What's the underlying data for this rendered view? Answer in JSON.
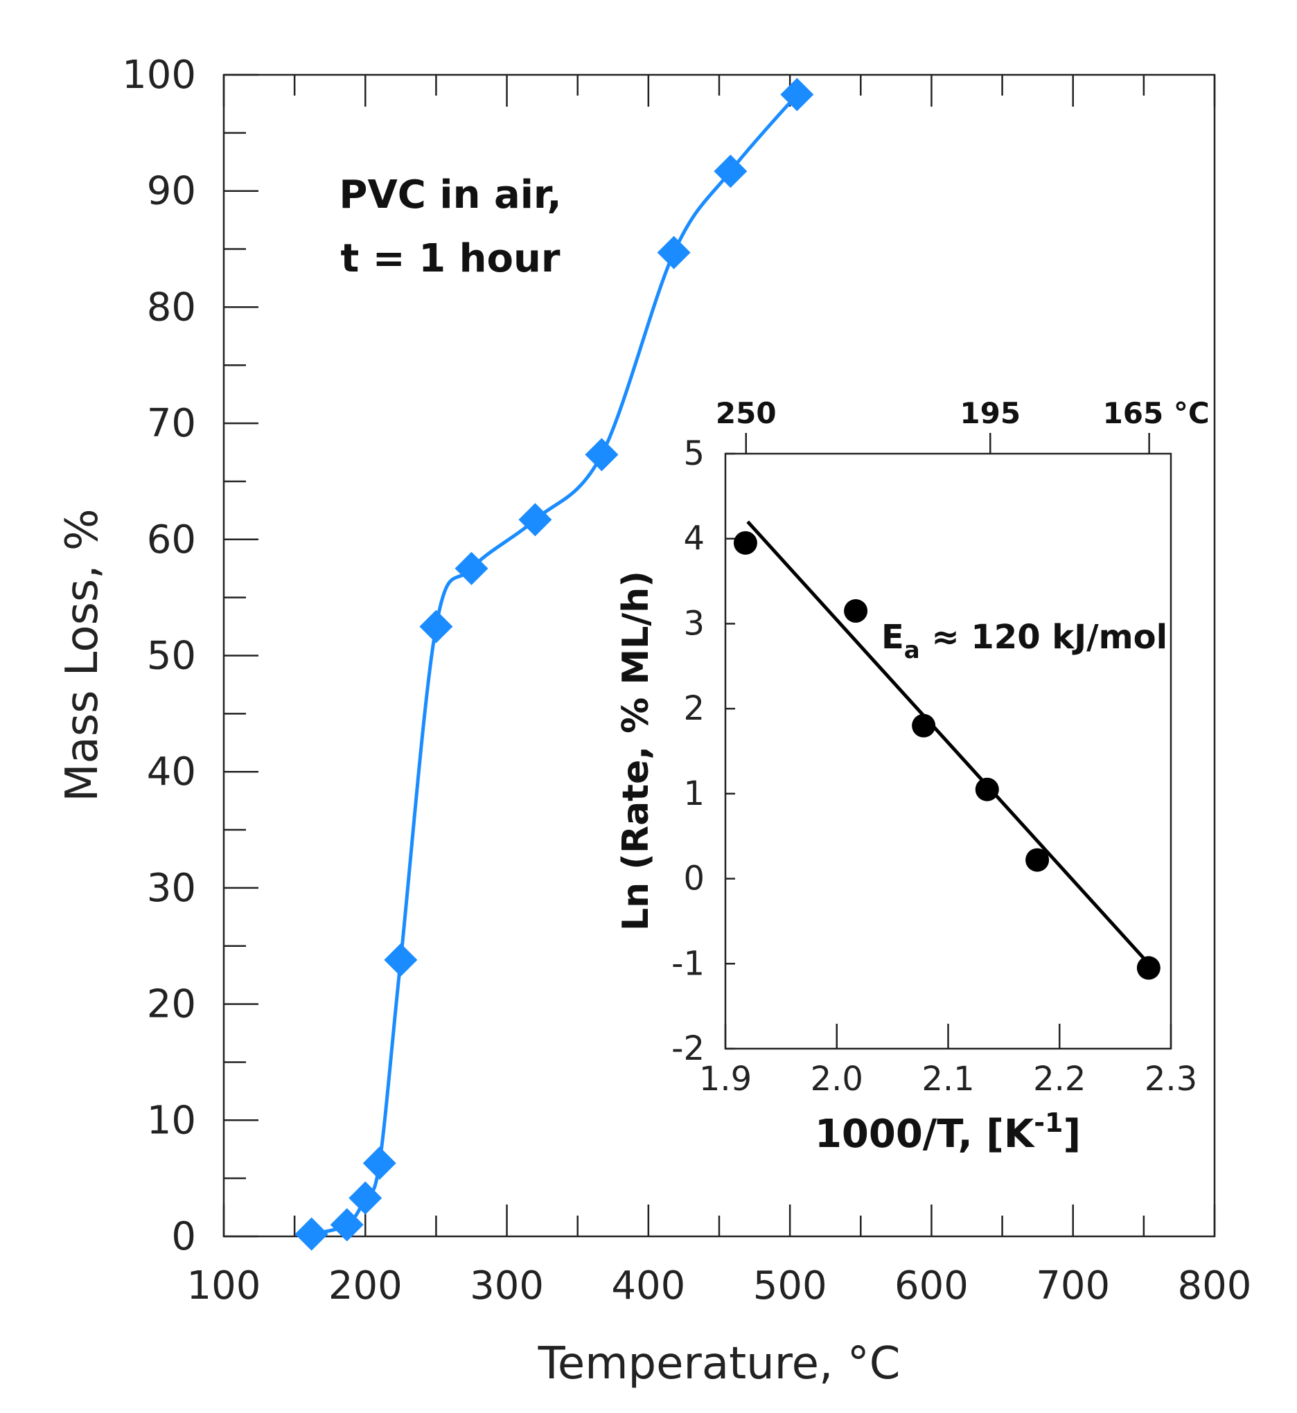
{
  "chart_data": [
    {
      "type": "line",
      "title": "",
      "annotation": {
        "line1": "PVC in air,",
        "line2": "t = 1 hour"
      },
      "xlabel": "Temperature, °C",
      "ylabel": "Mass Loss, %",
      "xlim": [
        100,
        800
      ],
      "ylim": [
        0,
        100
      ],
      "xticks": [
        100,
        200,
        300,
        400,
        500,
        600,
        700,
        800
      ],
      "yticks": [
        0,
        10,
        20,
        30,
        40,
        50,
        60,
        70,
        80,
        90,
        100
      ],
      "xtick_labels": [
        "100",
        "200",
        "300",
        "400",
        "500",
        "600",
        "700",
        "800"
      ],
      "ytick_labels": [
        "0",
        "10",
        "20",
        "30",
        "40",
        "50",
        "60",
        "70",
        "80",
        "90",
        "100"
      ],
      "grid": false,
      "series": [
        {
          "name": "PVC mass loss",
          "color": "#1a8cff",
          "marker": "diamond",
          "x": [
            162,
            187,
            200,
            210,
            225,
            250,
            275,
            320,
            367,
            418,
            458,
            505
          ],
          "y": [
            0.2,
            1.0,
            3.3,
            6.3,
            23.8,
            52.5,
            57.5,
            61.7,
            67.3,
            84.7,
            91.7,
            98.3
          ]
        }
      ]
    },
    {
      "type": "scatter",
      "title": "",
      "annotation": {
        "ea_main": "E",
        "ea_sub": "a",
        "ea_rest": " ≈ 120 kJ/mol"
      },
      "xlabel": "1000/T, [K",
      "xlabel_sup": "-1",
      "xlabel_end": "]",
      "ylabel": "Ln (Rate, % ML/h)",
      "xlim": [
        1.9,
        2.3
      ],
      "ylim": [
        -2,
        5
      ],
      "xticks": [
        1.9,
        2.0,
        2.1,
        2.2,
        2.3
      ],
      "yticks": [
        -2,
        -1,
        0,
        1,
        2,
        3,
        4,
        5
      ],
      "xtick_labels": [
        "1.9",
        "2.0",
        "2.1",
        "2.2",
        "2.3"
      ],
      "ytick_labels": [
        "-2",
        "-1",
        "0",
        "1",
        "2",
        "3",
        "4",
        "5"
      ],
      "top_axis": {
        "ticks_x": [
          1.9185,
          2.1378,
          2.2805
        ],
        "labels": [
          "250",
          "195",
          "165 °C"
        ]
      },
      "grid": false,
      "series": [
        {
          "name": "Ln rate",
          "color": "#000000",
          "marker": "circle",
          "x": [
            1.918,
            2.017,
            2.078,
            2.135,
            2.18,
            2.28
          ],
          "y": [
            3.95,
            3.15,
            1.8,
            1.05,
            0.22,
            -1.05
          ]
        }
      ],
      "fit_line": {
        "x": [
          1.92,
          2.28
        ],
        "y": [
          4.2,
          -1.0
        ]
      }
    }
  ]
}
